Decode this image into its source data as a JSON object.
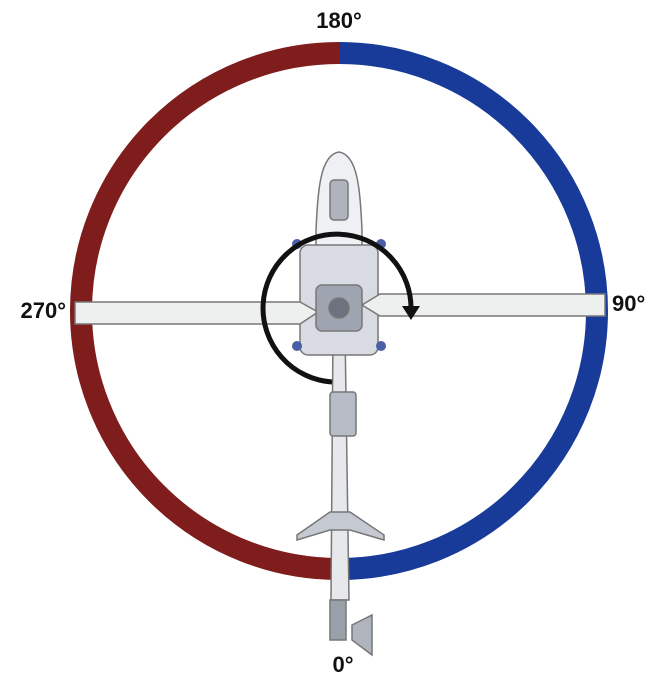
{
  "labels": {
    "top": "180°",
    "right": "90°",
    "left": "270°",
    "bottom": "0°"
  }
}
